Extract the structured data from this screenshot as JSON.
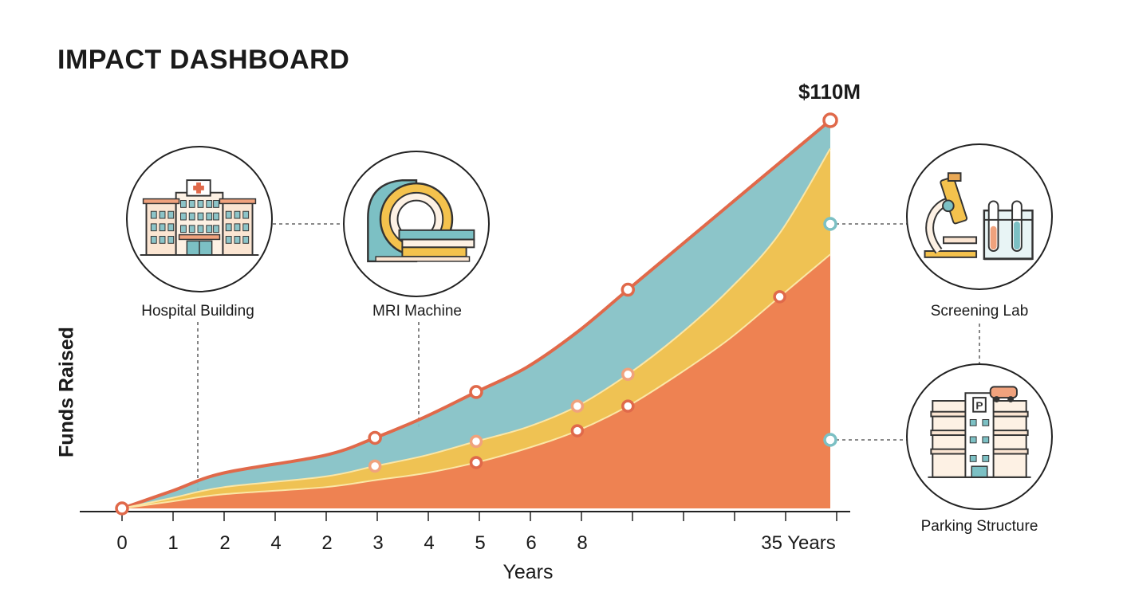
{
  "header": {
    "title": "IMPACT DASHBOARD"
  },
  "annotations": {
    "peak_label": "$110M"
  },
  "milestones": [
    {
      "label": "Hospital Building",
      "icon": "hospital-building-icon"
    },
    {
      "label": "MRI Machine",
      "icon": "mri-machine-icon"
    },
    {
      "label": "Screening Lab",
      "icon": "microscope-test-tubes-icon"
    },
    {
      "label": "Parking Structure",
      "icon": "parking-garage-icon"
    }
  ],
  "chart_data": {
    "type": "area",
    "stacked": true,
    "xlabel": "Years",
    "ylabel": "Funds Raised",
    "x_tick_labels": [
      "0",
      "1",
      "2",
      "4",
      "2",
      "3",
      "4",
      "5",
      "6",
      "8",
      "35 Years"
    ],
    "x": [
      0,
      1,
      2,
      4,
      5,
      6,
      7,
      8,
      9,
      10,
      11,
      12,
      13,
      14
    ],
    "series": [
      {
        "color": "#ed7e52",
        "values": [
          0,
          2,
          4,
          6,
          8,
          10,
          13,
          17,
          22,
          29,
          38,
          48,
          60,
          72
        ]
      },
      {
        "color": "#f4c24d",
        "values": [
          0,
          1,
          2,
          3,
          4,
          5,
          6,
          6,
          7,
          9,
          11,
          14,
          18,
          30
        ]
      },
      {
        "color": "#86c2c6",
        "values": [
          0,
          2,
          4,
          6,
          8,
          11,
          14,
          17,
          21,
          24,
          25,
          24,
          20,
          8
        ]
      }
    ],
    "ylim": [
      0,
      110
    ],
    "grid": false,
    "legend": "none",
    "colors": {
      "axis": "#222222",
      "line": "#e0694a",
      "marker_blue": "#7cc0c4"
    }
  }
}
